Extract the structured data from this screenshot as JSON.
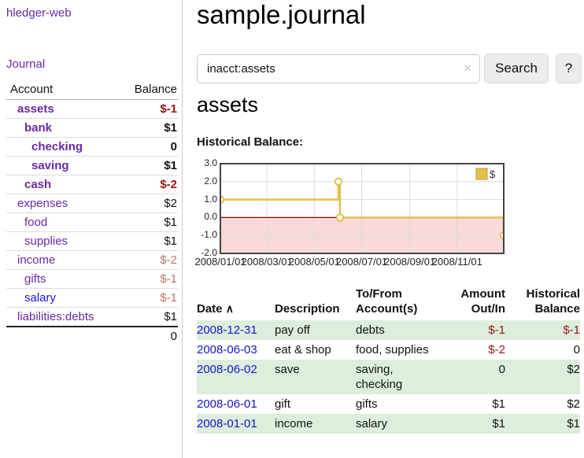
{
  "app": {
    "brand": "hledger-web"
  },
  "colors": {
    "link_purple": "#6b28a9",
    "link_blue": "#1a16d6",
    "date_link_blue": "#1515cf",
    "negative_red": "#9b1313",
    "negative_muted_red": "#c2706e",
    "row_stripe_green": "#ddeedd",
    "chart_line_gold": "#e4c04b",
    "chart_negative_region_pink": "#f9d9d9",
    "chart_zero_line": "#8b0000"
  },
  "sidebar": {
    "journal_link": "Journal",
    "accounts_table": {
      "headers": {
        "account": "Account",
        "balance": "Balance"
      },
      "rows": [
        {
          "name": "assets",
          "balance": "$-1",
          "depth": 1,
          "bold": true,
          "balance_style": "negative"
        },
        {
          "name": "bank",
          "balance": "$1",
          "depth": 2,
          "bold": true,
          "balance_style": "normal"
        },
        {
          "name": "checking",
          "balance": "0",
          "depth": 3,
          "bold": true,
          "balance_style": "normal"
        },
        {
          "name": "saving",
          "balance": "$1",
          "depth": 3,
          "bold": true,
          "balance_style": "normal"
        },
        {
          "name": "cash",
          "balance": "$-2",
          "depth": 2,
          "bold": true,
          "balance_style": "negative"
        },
        {
          "name": "expenses",
          "balance": "$2",
          "depth": 1,
          "bold": false,
          "balance_style": "normal"
        },
        {
          "name": "food",
          "balance": "$1",
          "depth": 2,
          "bold": false,
          "balance_style": "normal"
        },
        {
          "name": "supplies",
          "balance": "$1",
          "depth": 2,
          "bold": false,
          "balance_style": "normal"
        },
        {
          "name": "income",
          "balance": "$-2",
          "depth": 1,
          "bold": false,
          "balance_style": "negative-muted"
        },
        {
          "name": "gifts",
          "balance": "$-1",
          "depth": 2,
          "bold": false,
          "balance_style": "negative-muted"
        },
        {
          "name": "salary",
          "balance": "$-1",
          "depth": 2,
          "bold": false,
          "balance_style": "negative-muted",
          "link_style": "blue"
        },
        {
          "name": "liabilities:debts",
          "balance": "$1",
          "depth": 1,
          "bold": false,
          "balance_style": "normal"
        }
      ],
      "total": "0"
    }
  },
  "main": {
    "title": "sample.journal",
    "search": {
      "value": "inacct:assets",
      "clear_icon": "×",
      "search_button": "Search",
      "help_button": "?"
    },
    "account_heading": "assets",
    "section_label": "Historical Balance:"
  },
  "chart_data": {
    "type": "line",
    "title": "Historical Balance",
    "legend": [
      {
        "label": "$",
        "color": "#e4c04b"
      }
    ],
    "legend_position": "top-right",
    "grid": true,
    "ylim": [
      -2,
      3
    ],
    "y_ticks": [
      3,
      2,
      1,
      0,
      -1,
      -2
    ],
    "y_tick_labels": [
      "3.0",
      "2.0",
      "1.0",
      "0.0",
      "-1.0",
      "-2.0"
    ],
    "x_domain_days": 365,
    "x_ticks": [
      {
        "day": 0,
        "label": "2008/01/01"
      },
      {
        "day": 60,
        "label": "2008/03/01"
      },
      {
        "day": 121,
        "label": "2008/05/01"
      },
      {
        "day": 182,
        "label": "2008/07/01"
      },
      {
        "day": 244,
        "label": "2008/09/01"
      },
      {
        "day": 305,
        "label": "2008/11/01"
      }
    ],
    "series": [
      {
        "name": "$",
        "color": "#e4c04b",
        "points": [
          {
            "date": "2008-01-01",
            "day": 0,
            "value": 1
          },
          {
            "date": "2008-06-01",
            "day": 152,
            "value": 2
          },
          {
            "date": "2008-06-03",
            "day": 154,
            "value": 0
          },
          {
            "date": "2008-12-31",
            "day": 365,
            "value": -1
          }
        ],
        "step_path": [
          [
            0,
            1
          ],
          [
            152,
            1
          ],
          [
            152,
            2
          ],
          [
            154,
            2
          ],
          [
            154,
            0
          ],
          [
            365,
            0
          ],
          [
            365,
            -1
          ]
        ],
        "markers": [
          [
            0,
            1
          ],
          [
            152,
            2
          ],
          [
            154,
            0
          ],
          [
            365,
            -1
          ]
        ]
      }
    ],
    "negative_region_color": "#f9d9d9",
    "zero_line_color": "#8b0000",
    "grid_color": "#dcdcdc",
    "border_color": "#444444"
  },
  "register": {
    "headers": {
      "date": "Date",
      "sort_icon": "∧",
      "description": "Description",
      "tofrom_line1": "To/From",
      "tofrom_line2": "Account(s)",
      "amount_line1": "Amount",
      "amount_line2": "Out/In",
      "balance_line1": "Historical",
      "balance_line2": "Balance"
    },
    "rows": [
      {
        "date": "2008-12-31",
        "description": "pay off",
        "accounts": "debts",
        "amount": "$-1",
        "balance": "$-1"
      },
      {
        "date": "2008-06-03",
        "description": "eat & shop",
        "accounts": "food, supplies",
        "amount": "$-2",
        "balance": "0"
      },
      {
        "date": "2008-06-02",
        "description": "save",
        "accounts": "saving, checking",
        "amount": "0",
        "balance": "$2"
      },
      {
        "date": "2008-06-01",
        "description": "gift",
        "accounts": "gifts",
        "amount": "$1",
        "balance": "$2"
      },
      {
        "date": "2008-01-01",
        "description": "income",
        "accounts": "salary",
        "amount": "$1",
        "balance": "$1"
      }
    ]
  }
}
